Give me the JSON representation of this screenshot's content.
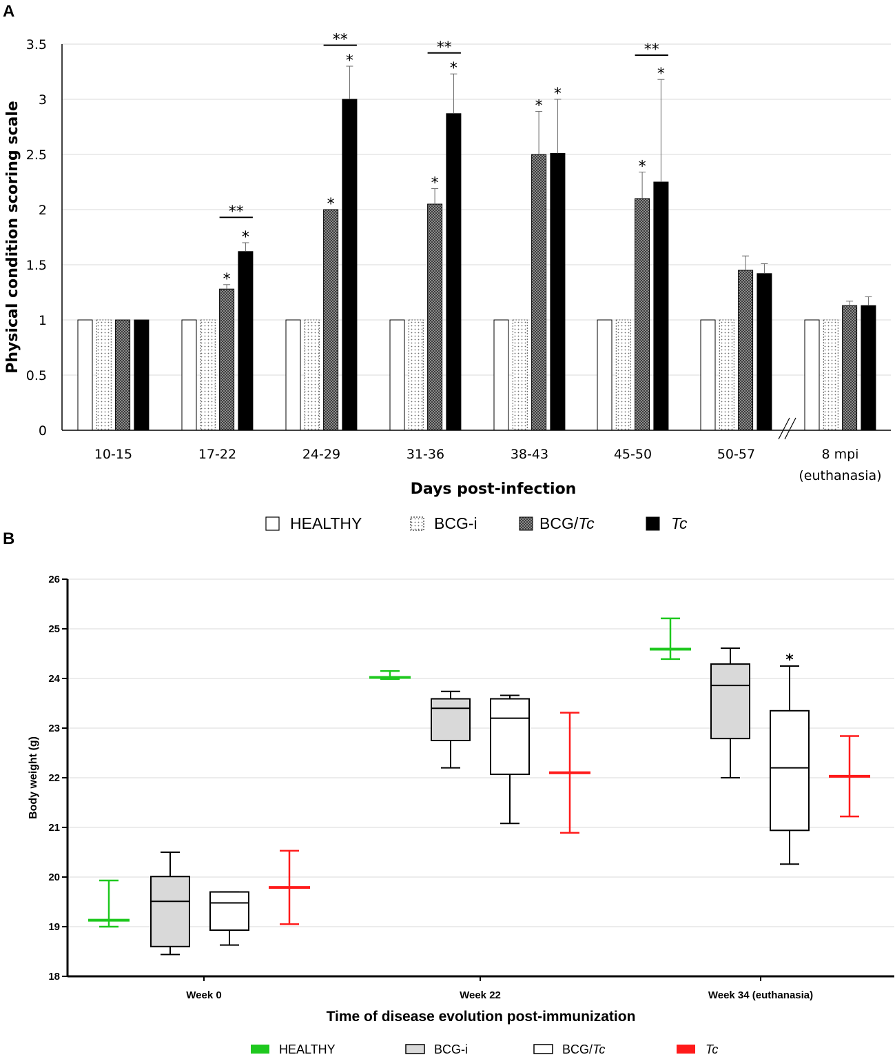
{
  "panel_a_label": "A",
  "panel_b_label": "B",
  "chart_data": [
    {
      "type": "bar",
      "panel": "A",
      "ylabel": "Physical condition scoring scale",
      "xlabel": "Days post-infection",
      "ylim": [
        0,
        3.5
      ],
      "yticks": [
        "0",
        "0.5",
        "1",
        "1.5",
        "2",
        "2.5",
        "3",
        "3.5"
      ],
      "ytick_values": [
        0,
        0.5,
        1,
        1.5,
        2,
        2.5,
        3,
        3.5
      ],
      "categories": [
        "10-15",
        "17-22",
        "24-29",
        "31-36",
        "38-43",
        "45-50",
        "50-57",
        "8 mpi"
      ],
      "category_sublabels": [
        "",
        "",
        "",
        "",
        "",
        "",
        "",
        "(euthanasia)"
      ],
      "axis_break_after": "50-57",
      "series": [
        {
          "name": "HEALTHY",
          "pattern": "empty",
          "values": [
            1,
            1,
            1,
            1,
            1,
            1,
            1,
            1
          ],
          "errors": [
            0,
            0,
            0,
            0,
            0,
            0,
            0,
            0
          ]
        },
        {
          "name": "BCG-i",
          "pattern": "dots",
          "values": [
            1,
            1,
            1,
            1,
            1,
            1,
            1,
            1
          ],
          "errors": [
            0,
            0,
            0,
            0,
            0,
            0,
            0,
            0
          ]
        },
        {
          "name": "BCG/",
          "name_italic": "Tc",
          "pattern": "crosshatch",
          "values": [
            1,
            1.28,
            2,
            2.05,
            2.5,
            2.1,
            1.45,
            1.13
          ],
          "errors": [
            0,
            0.04,
            0,
            0.14,
            0.39,
            0.24,
            0.13,
            0.04
          ]
        },
        {
          "name": "",
          "name_italic": "Tc",
          "pattern": "solid",
          "values": [
            1,
            1.62,
            3,
            2.87,
            2.51,
            2.25,
            1.42,
            1.13
          ],
          "errors": [
            0,
            0.08,
            0.3,
            0.36,
            0.49,
            0.93,
            0.09,
            0.08
          ]
        }
      ],
      "significance": [
        {
          "category": 1,
          "series": 2,
          "label": "*"
        },
        {
          "category": 1,
          "series": 3,
          "label": "*"
        },
        {
          "category": 2,
          "series": 2,
          "label": "*"
        },
        {
          "category": 2,
          "series": 3,
          "label": "*"
        },
        {
          "category": 3,
          "series": 2,
          "label": "*"
        },
        {
          "category": 3,
          "series": 3,
          "label": "*"
        },
        {
          "category": 4,
          "series": 2,
          "label": "*"
        },
        {
          "category": 4,
          "series": 3,
          "label": "*"
        },
        {
          "category": 5,
          "series": 2,
          "label": "*"
        },
        {
          "category": 5,
          "series": 3,
          "label": "*"
        }
      ],
      "brackets": [
        {
          "category": 1,
          "label": "**",
          "y": 1.93
        },
        {
          "category": 2,
          "label": "**",
          "y": 3.49
        },
        {
          "category": 3,
          "label": "**",
          "y": 3.42
        },
        {
          "category": 5,
          "label": "**",
          "y": 3.4
        }
      ],
      "legend": [
        "HEALTHY",
        "BCG-i",
        "BCG/",
        "Tc"
      ]
    },
    {
      "type": "box",
      "panel": "B",
      "ylabel": "Body weight (g)",
      "xlabel": "Time of disease evolution post-immunization",
      "ylim": [
        18,
        26
      ],
      "yticks": [
        "18",
        "19",
        "20",
        "21",
        "22",
        "23",
        "24",
        "25",
        "26"
      ],
      "ytick_values": [
        18,
        19,
        20,
        21,
        22,
        23,
        24,
        25,
        26
      ],
      "categories": [
        "Week 0",
        "Week 22",
        "Week 34 (euthanasia)"
      ],
      "series": [
        {
          "name": "HEALTHY",
          "color": "#1ec81e",
          "style": "minmax",
          "data": [
            {
              "min": 19.0,
              "q1": 19.1,
              "median": 19.13,
              "q3": 19.15,
              "max": 19.93
            },
            {
              "min": 23.99,
              "q1": 24.0,
              "median": 24.02,
              "q3": 24.03,
              "max": 24.15
            },
            {
              "min": 24.39,
              "q1": 24.56,
              "median": 24.59,
              "q3": 24.61,
              "max": 25.21
            }
          ]
        },
        {
          "name": "BCG-i",
          "color": "#d9d9d9",
          "style": "box",
          "data": [
            {
              "min": 18.44,
              "q1": 18.6,
              "median": 19.51,
              "q3": 20.01,
              "max": 20.5
            },
            {
              "min": 22.2,
              "q1": 22.75,
              "median": 23.4,
              "q3": 23.59,
              "max": 23.74
            },
            {
              "min": 22.0,
              "q1": 22.79,
              "median": 23.86,
              "q3": 24.29,
              "max": 24.61
            }
          ]
        },
        {
          "name": "BCG/",
          "name_italic": "Tc",
          "color": "#ffffff",
          "style": "box",
          "data": [
            {
              "min": 18.63,
              "q1": 18.93,
              "median": 19.48,
              "q3": 19.7,
              "max": 19.7
            },
            {
              "min": 21.08,
              "q1": 22.07,
              "median": 23.2,
              "q3": 23.59,
              "max": 23.66
            },
            {
              "min": 20.26,
              "q1": 20.94,
              "median": 22.2,
              "q3": 23.35,
              "max": 24.25
            }
          ]
        },
        {
          "name": "",
          "name_italic": "Tc",
          "color": "#ff1a1a",
          "style": "minmax",
          "data": [
            {
              "min": 19.05,
              "q1": 19.75,
              "median": 19.79,
              "q3": 19.81,
              "max": 20.53
            },
            {
              "min": 20.89,
              "q1": 22.08,
              "median": 22.1,
              "q3": 22.12,
              "max": 23.31
            },
            {
              "min": 21.22,
              "q1": 22.0,
              "median": 22.03,
              "q3": 22.05,
              "max": 22.84
            }
          ]
        }
      ],
      "significance": [
        {
          "category": 2,
          "series": 2,
          "label": "*"
        }
      ],
      "legend": [
        "HEALTHY",
        "BCG-i",
        "BCG/",
        "Tc"
      ]
    }
  ]
}
